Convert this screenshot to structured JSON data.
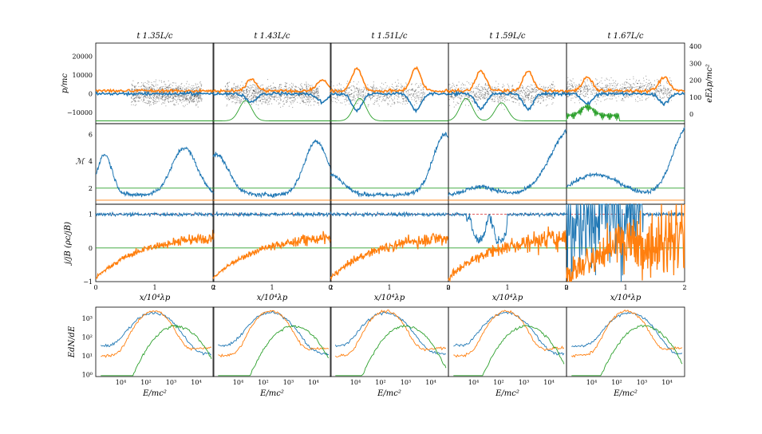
{
  "chart_data": {
    "type": "grid",
    "colors": {
      "blue": "#1f77b4",
      "orange": "#ff7f0e",
      "green": "#2ca02c",
      "red": "#d62728",
      "black": "#000000"
    },
    "columns": [
      {
        "title": "t   1.35L/c"
      },
      {
        "title": "t   1.43L/c"
      },
      {
        "title": "t   1.51L/c"
      },
      {
        "title": "t   1.59L/c"
      },
      {
        "title": "t   1.67L/c"
      }
    ],
    "rows": [
      {
        "name": "phase-space",
        "type": "scatter",
        "ylabel": "p/mc",
        "ylabel_right": "eEλp/mc²",
        "yticks": [
          "20000",
          "10000",
          "0",
          "−10000"
        ],
        "yticks_right": [
          "400",
          "300",
          "200",
          "100",
          "0"
        ],
        "ylim": [
          -16000,
          27000
        ],
        "xlim": [
          0,
          2
        ]
      },
      {
        "name": "mach",
        "type": "line",
        "ylabel": "ℳ",
        "yticks": [
          "6",
          "4",
          "2"
        ],
        "ylim": [
          0.8,
          6.8
        ],
        "xlim": [
          0,
          2
        ],
        "reference_lines": [
          {
            "color": "green",
            "value": 2.0
          },
          {
            "color": "orange",
            "value": 1.1
          }
        ]
      },
      {
        "name": "current",
        "type": "line",
        "ylabel": "j/jB (ρc/jB)",
        "yticks": [
          "1",
          "0",
          "−1"
        ],
        "xticks": [
          "0",
          "1",
          "2"
        ],
        "xlabel": "x/10⁴λp",
        "ylim": [
          -1,
          1.3
        ],
        "xlim": [
          0,
          2
        ],
        "reference_lines": [
          {
            "color": "green",
            "value": 0
          },
          {
            "color": "red",
            "value": 1,
            "dash": true
          }
        ]
      },
      {
        "name": "spectra",
        "type": "step",
        "ylabel": "EdN/dE",
        "xlabel": "E/mc²",
        "scale": "log-log",
        "yticks": [
          "10³",
          "10²",
          "10¹",
          "10⁰"
        ],
        "xticks": [
          "10⁴",
          "10²",
          "10³",
          "10⁴"
        ],
        "xlim": [
          1,
          50000
        ],
        "ylim": [
          0.8,
          4000
        ]
      }
    ]
  }
}
